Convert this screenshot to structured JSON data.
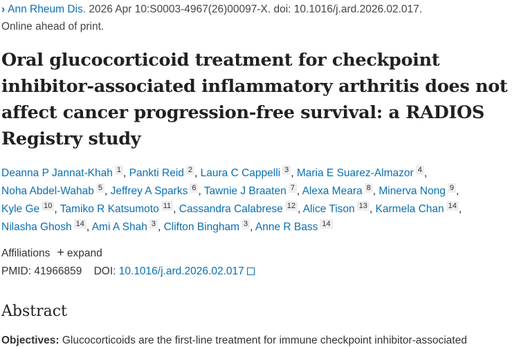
{
  "citation": {
    "journal": "Ann Rheum Dis.",
    "details": "2026 Apr 10:S0003-4967(26)00097-X. doi: 10.1016/j.ard.2026.02.017.",
    "status": "Online ahead of print."
  },
  "title": "Oral glucocorticoid treatment for checkpoint inhibitor-associated inflammatory arthritis does not affect cancer progression-free survival: a RADIOS Registry study",
  "authors": [
    {
      "name": "Deanna P Jannat-Khah",
      "aff": "1"
    },
    {
      "name": "Pankti Reid",
      "aff": "2"
    },
    {
      "name": "Laura C Cappelli",
      "aff": "3"
    },
    {
      "name": "Maria E Suarez-Almazor",
      "aff": "4"
    },
    {
      "name": "Noha Abdel-Wahab",
      "aff": "5"
    },
    {
      "name": "Jeffrey A Sparks",
      "aff": "6"
    },
    {
      "name": "Tawnie J Braaten",
      "aff": "7"
    },
    {
      "name": "Alexa Meara",
      "aff": "8"
    },
    {
      "name": "Minerva Nong",
      "aff": "9"
    },
    {
      "name": "Kyle Ge",
      "aff": "10"
    },
    {
      "name": "Tamiko R Katsumoto",
      "aff": "11"
    },
    {
      "name": "Cassandra Calabrese",
      "aff": "12"
    },
    {
      "name": "Alice Tison",
      "aff": "13"
    },
    {
      "name": "Karmela Chan",
      "aff": "14"
    },
    {
      "name": "Nilasha Ghosh",
      "aff": "14"
    },
    {
      "name": "Ami A Shah",
      "aff": "3"
    },
    {
      "name": "Clifton Bingham",
      "aff": "3"
    },
    {
      "name": "Anne R Bass",
      "aff": "14"
    }
  ],
  "affiliations": {
    "label": "Affiliations",
    "expand": "expand"
  },
  "ids": {
    "pmid_label": "PMID:",
    "pmid": "41966859",
    "doi_label": "DOI:",
    "doi": "10.1016/j.ard.2026.02.017"
  },
  "abstract": {
    "heading": "Abstract",
    "objectives_label": "Objectives:",
    "objectives_text": "Glucocorticoids are the first-line treatment for immune checkpoint inhibitor-associated"
  },
  "colors": {
    "link": "#0b6fb2"
  }
}
